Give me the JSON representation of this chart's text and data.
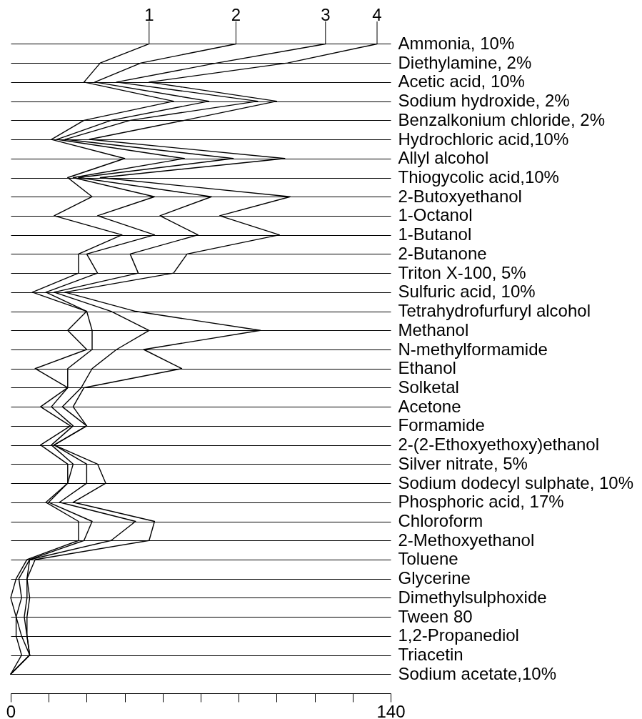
{
  "chart_data": {
    "type": "line",
    "orientation": "horizontal",
    "categories": [
      "Ammonia, 10%",
      "Diethylamine, 2%",
      "Acetic acid, 10%",
      "Sodium hydroxide, 2%",
      "Benzalkonium chloride, 2%",
      "Hydrochloric acid,10%",
      "Allyl alcohol",
      "Thiogycolic acid,10%",
      "2-Butoxyethanol",
      "1-Octanol",
      "1-Butanol",
      "2-Butanone",
      "Triton X-100, 5%",
      "Sulfuric acid, 10%",
      "Tetrahydrofurfuryl alcohol",
      "Methanol",
      "N-methylformamide",
      "Ethanol",
      "Solketal",
      "Acetone",
      "Formamide",
      "2-(2-Ethoxyethoxy)ethanol",
      "Silver nitrate, 5%",
      "Sodium dodecyl sulphate, 10%",
      "Phosphoric acid, 17%",
      "Chloroform",
      "2-Methoxyethanol",
      "Toluene",
      "Glycerine",
      "Dimethylsulphoxide",
      "Tween 80",
      "1,2-Propanediol",
      "Triacetin",
      "Sodium acetate,10%"
    ],
    "series": [
      {
        "name": "1",
        "color": "#000000",
        "values": [
          51,
          33,
          27,
          60,
          27,
          15,
          42,
          21,
          30,
          16,
          41,
          25,
          25,
          8,
          28,
          21,
          28,
          9,
          21,
          11,
          22,
          11,
          21,
          21,
          13,
          25,
          25,
          6,
          2,
          0,
          2,
          2,
          4,
          0
        ]
      },
      {
        "name": "2",
        "color": "#000000",
        "values": [
          83,
          48,
          31,
          73,
          37,
          17,
          64,
          23,
          53,
          32,
          53,
          28,
          32,
          13,
          28,
          30,
          30,
          21,
          21,
          15,
          23,
          15,
          23,
          21,
          14,
          30,
          27,
          7,
          3,
          4,
          2,
          4,
          7,
          0
        ]
      },
      {
        "name": "3",
        "color": "#000000",
        "values": [
          116,
          76,
          39,
          91,
          44,
          20,
          82,
          25,
          74,
          55,
          69,
          44,
          47,
          16,
          37,
          51,
          39,
          30,
          26,
          19,
          28,
          16,
          28,
          28,
          18,
          46,
          37,
          7,
          6,
          6,
          5,
          6,
          7,
          0
        ]
      },
      {
        "name": "4",
        "color": "#000000",
        "values": [
          135,
          102,
          51,
          98,
          64,
          29,
          101,
          33,
          103,
          77,
          99,
          65,
          60,
          20,
          46,
          92,
          49,
          63,
          27,
          23,
          28,
          16,
          32,
          35,
          23,
          53,
          51,
          9,
          6,
          7,
          6,
          6,
          7,
          0
        ]
      }
    ],
    "xlim": [
      0,
      140
    ],
    "xticks": [
      0,
      {
        "value": 14,
        "label": null
      },
      {
        "value": 28,
        "label": null
      },
      {
        "value": 42,
        "label": null
      },
      {
        "value": 56,
        "label": null
      },
      {
        "value": 70,
        "label": null
      },
      {
        "value": 84,
        "label": null
      },
      {
        "value": 98,
        "label": null
      },
      {
        "value": 112,
        "label": null
      },
      {
        "value": 126,
        "label": null
      },
      140
    ],
    "grid": "y"
  }
}
